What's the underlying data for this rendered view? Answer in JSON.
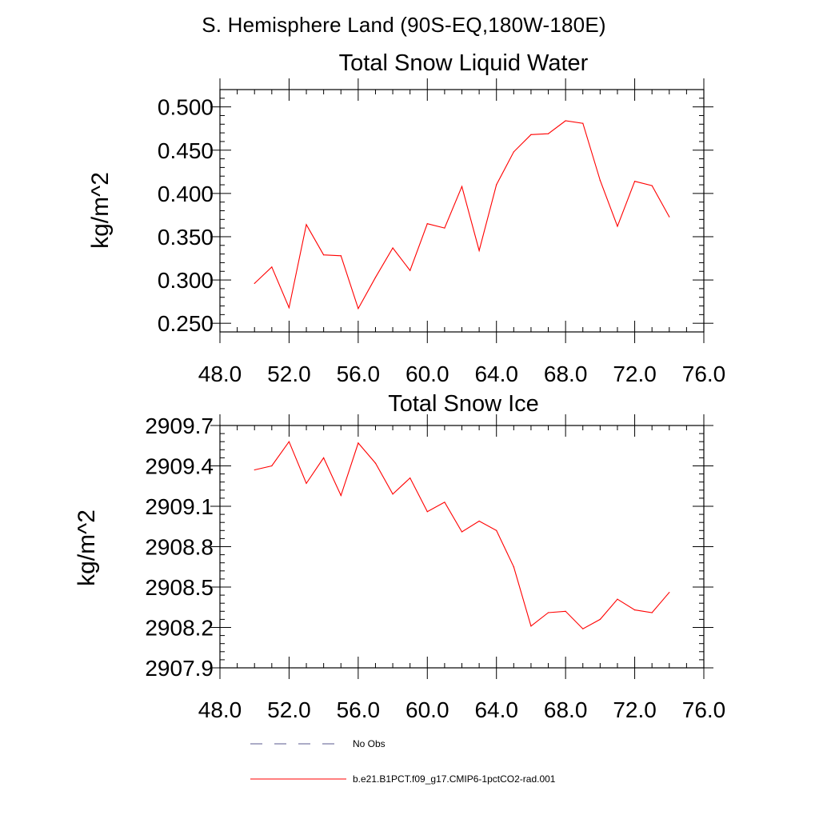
{
  "header": {
    "title": "S. Hemisphere Land (90S-EQ,180W-180E)"
  },
  "chart_data": [
    {
      "type": "line",
      "title": "Total Snow Liquid Water",
      "xlabel": "",
      "ylabel": "kg/m^2",
      "xlim": [
        48,
        76
      ],
      "ylim": [
        0.24,
        0.52
      ],
      "x_ticks": [
        "48.0",
        "52.0",
        "56.0",
        "60.0",
        "64.0",
        "68.0",
        "72.0",
        "76.0"
      ],
      "y_ticks": [
        "0.250",
        "0.300",
        "0.350",
        "0.400",
        "0.450",
        "0.500"
      ],
      "grid": false,
      "series": [
        {
          "name": "b.e21.B1PCT.f09_g17.CMIP6-1pctCO2-rad.001",
          "color": "#ff0000",
          "x": [
            50,
            51,
            52,
            53,
            54,
            55,
            56,
            57,
            58,
            59,
            60,
            61,
            62,
            63,
            64,
            65,
            66,
            67,
            68,
            69,
            70,
            71,
            72,
            73,
            74
          ],
          "values": [
            0.296,
            0.315,
            0.268,
            0.364,
            0.329,
            0.328,
            0.267,
            0.303,
            0.337,
            0.311,
            0.365,
            0.36,
            0.408,
            0.334,
            0.41,
            0.448,
            0.468,
            0.469,
            0.484,
            0.481,
            0.415,
            0.362,
            0.414,
            0.409,
            0.373
          ]
        }
      ]
    },
    {
      "type": "line",
      "title": "Total Snow Ice",
      "xlabel": "",
      "ylabel": "kg/m^2",
      "xlim": [
        48,
        76
      ],
      "ylim": [
        2907.9,
        2909.7
      ],
      "x_ticks": [
        "48.0",
        "52.0",
        "56.0",
        "60.0",
        "64.0",
        "68.0",
        "72.0",
        "76.0"
      ],
      "y_ticks": [
        "2907.9",
        "2908.2",
        "2908.5",
        "2908.8",
        "2909.1",
        "2909.4",
        "2909.7"
      ],
      "grid": false,
      "series": [
        {
          "name": "b.e21.B1PCT.f09_g17.CMIP6-1pctCO2-rad.001",
          "color": "#ff0000",
          "x": [
            50,
            51,
            52,
            53,
            54,
            55,
            56,
            57,
            58,
            59,
            60,
            61,
            62,
            63,
            64,
            65,
            66,
            67,
            68,
            69,
            70,
            71,
            72,
            73,
            74
          ],
          "values": [
            2909.37,
            2909.4,
            2909.58,
            2909.27,
            2909.46,
            2909.18,
            2909.57,
            2909.42,
            2909.19,
            2909.31,
            2909.06,
            2909.13,
            2908.91,
            2908.99,
            2908.92,
            2908.65,
            2908.21,
            2908.31,
            2908.32,
            2908.19,
            2908.26,
            2908.41,
            2908.33,
            2908.31,
            2908.46
          ]
        }
      ]
    }
  ],
  "legend": {
    "placement": "bottom",
    "items": [
      {
        "label": "No Obs",
        "style": "dashed",
        "color": "#5a5a8c"
      },
      {
        "label": "b.e21.B1PCT.f09_g17.CMIP6-1pctCO2-rad.001",
        "style": "solid",
        "color": "#ff0000"
      }
    ]
  }
}
